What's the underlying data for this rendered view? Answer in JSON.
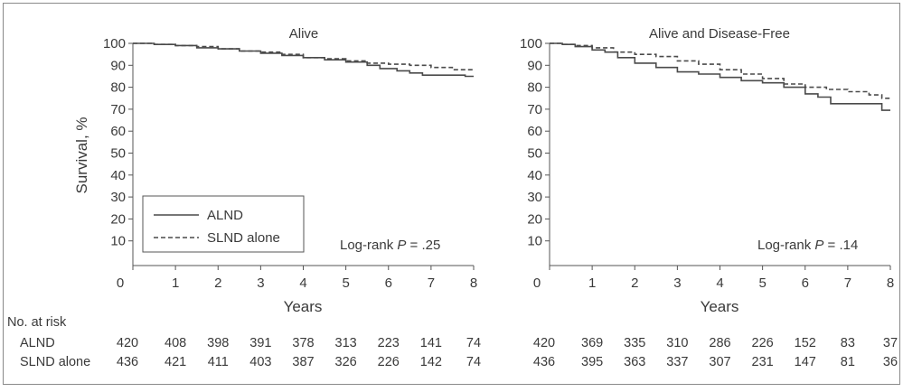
{
  "chart_data": [
    {
      "type": "line",
      "title": "Alive",
      "xlabel": "Years",
      "ylabel": "Survival, %",
      "xlim": [
        0,
        8
      ],
      "ylim": [
        0,
        100
      ],
      "x_ticks": [
        "0",
        "1",
        "2",
        "3",
        "4",
        "5",
        "6",
        "7",
        "8"
      ],
      "y_ticks": [
        "10",
        "20",
        "30",
        "40",
        "50",
        "60",
        "70",
        "80",
        "90",
        "100"
      ],
      "annotation": {
        "prefix": "Log-rank ",
        "p": "P",
        "suffix": " = .25"
      },
      "legend": {
        "placement": "bottom-left",
        "entries": [
          "ALND",
          "SLND alone"
        ]
      },
      "series": [
        {
          "name": "ALND",
          "style": "solid",
          "color": "#4a4a4a",
          "x": [
            0,
            0.5,
            1,
            1.5,
            2,
            2.5,
            3,
            3.5,
            4,
            4.5,
            5,
            5.5,
            5.8,
            6.2,
            6.5,
            6.8,
            7.2,
            7.8,
            8
          ],
          "y": [
            100,
            99.5,
            99,
            98,
            97.5,
            96.5,
            95.5,
            94.5,
            93.5,
            92.5,
            91.5,
            90,
            88.5,
            87.5,
            86.5,
            85.5,
            85.5,
            85,
            85
          ]
        },
        {
          "name": "SLND alone",
          "style": "dashed",
          "color": "#4a4a4a",
          "x": [
            0,
            0.5,
            1,
            1.5,
            2,
            2.5,
            3,
            3.5,
            4,
            4.5,
            5,
            5.5,
            6,
            6.5,
            7,
            7.5,
            8
          ],
          "y": [
            100,
            99.5,
            99,
            98.5,
            97.5,
            96.5,
            96,
            95,
            93.5,
            93,
            92,
            91,
            90.5,
            90,
            89,
            88,
            88
          ]
        }
      ]
    },
    {
      "type": "line",
      "title": "Alive and Disease-Free",
      "xlabel": "Years",
      "ylabel": "",
      "xlim": [
        0,
        8
      ],
      "ylim": [
        0,
        100
      ],
      "x_ticks": [
        "0",
        "1",
        "2",
        "3",
        "4",
        "5",
        "6",
        "7",
        "8"
      ],
      "y_ticks": [
        "10",
        "20",
        "30",
        "40",
        "50",
        "60",
        "70",
        "80",
        "90",
        "100"
      ],
      "annotation": {
        "prefix": "Log-rank ",
        "p": "P",
        "suffix": " = .14"
      },
      "series": [
        {
          "name": "ALND",
          "style": "solid",
          "color": "#4a4a4a",
          "x": [
            0,
            0.3,
            0.6,
            1,
            1.3,
            1.6,
            2,
            2.5,
            3,
            3.5,
            4,
            4.5,
            5,
            5.5,
            6,
            6.3,
            6.6,
            7,
            7.5,
            7.8,
            8
          ],
          "y": [
            100,
            99.5,
            98.5,
            97,
            96,
            93.5,
            91,
            89,
            87,
            86,
            84.5,
            83,
            82,
            80,
            77,
            75.5,
            72.5,
            72.5,
            72.5,
            69.5,
            69.5
          ]
        },
        {
          "name": "SLND alone",
          "style": "dashed",
          "color": "#4a4a4a",
          "x": [
            0,
            0.3,
            0.6,
            1,
            1.5,
            2,
            2.5,
            3,
            3.5,
            4,
            4.5,
            5,
            5.5,
            6,
            6.5,
            7,
            7.5,
            7.8,
            8
          ],
          "y": [
            100,
            99.5,
            99,
            98,
            96,
            95,
            94,
            92,
            90.5,
            88,
            86,
            84,
            81.5,
            80,
            79,
            78,
            76.5,
            75,
            75
          ]
        }
      ]
    }
  ],
  "risk_table": {
    "header": "No. at risk",
    "rows": [
      {
        "label": "ALND",
        "left": [
          "420",
          "408",
          "398",
          "391",
          "378",
          "313",
          "223",
          "141",
          "74"
        ],
        "right": [
          "420",
          "369",
          "335",
          "310",
          "286",
          "226",
          "152",
          "83",
          "37"
        ]
      },
      {
        "label": "SLND alone",
        "left": [
          "436",
          "421",
          "411",
          "403",
          "387",
          "326",
          "226",
          "142",
          "74"
        ],
        "right": [
          "436",
          "395",
          "363",
          "337",
          "307",
          "231",
          "147",
          "81",
          "36"
        ]
      }
    ]
  },
  "colors": {
    "frame": "#8a8a8a",
    "axis": "#555555",
    "line": "#4a4a4a",
    "text": "#3a3a3a",
    "background": "#ffffff"
  }
}
